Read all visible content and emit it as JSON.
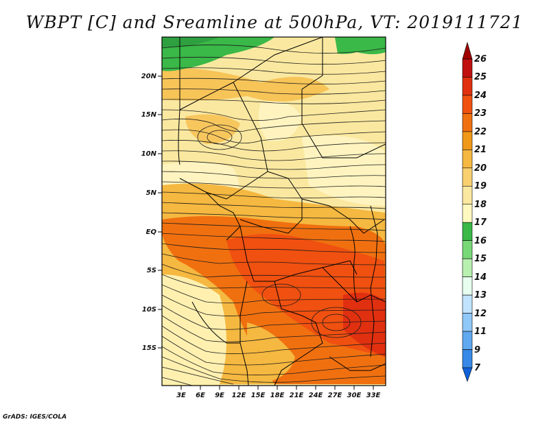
{
  "title": "WBPT [C] and Sreamline at 500hPa, VT: 2019111721",
  "footer": "GrADS: IGES/COLA",
  "map": {
    "region": "Central and East Africa",
    "lon_range": [
      0,
      35
    ],
    "lat_range": [
      -20,
      24
    ],
    "lat_ticks": [
      "20N",
      "15N",
      "10N",
      "5N",
      "EQ",
      "5S",
      "10S",
      "15S"
    ],
    "lon_ticks": [
      "3E",
      "6E",
      "9E",
      "12E",
      "15E",
      "18E",
      "21E",
      "24E",
      "27E",
      "30E",
      "33E"
    ]
  },
  "colorbar": {
    "labels": [
      "26",
      "25",
      "24",
      "23",
      "22",
      "21",
      "20",
      "19",
      "18",
      "17",
      "16",
      "15",
      "14",
      "13",
      "12",
      "11",
      "9",
      "7"
    ],
    "colors": [
      "#a00000",
      "#c01010",
      "#e03010",
      "#f05010",
      "#f07010",
      "#f09818",
      "#f5b840",
      "#f8d070",
      "#fae8a0",
      "#fff8c0",
      "#3ab848",
      "#78d878",
      "#b8f0b0",
      "#e8fff0",
      "#c0e4ff",
      "#90c8f8",
      "#60a8f0",
      "#3888e8",
      "#1060d8"
    ]
  }
}
